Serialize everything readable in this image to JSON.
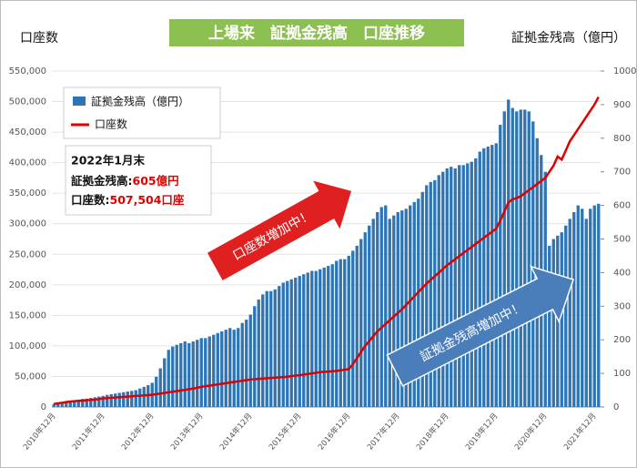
{
  "chart_data": {
    "type": "bar_line",
    "title": "上場来　証拠金残高　口座推移",
    "y_label": "口座数",
    "y2_label": "証拠金残高（億円）",
    "categories": [
      "2010年12月",
      null,
      null,
      null,
      null,
      null,
      null,
      null,
      null,
      null,
      null,
      null,
      "2011年12月",
      null,
      null,
      null,
      null,
      null,
      null,
      null,
      null,
      null,
      null,
      null,
      "2012年12月",
      null,
      null,
      null,
      null,
      null,
      null,
      null,
      null,
      null,
      null,
      null,
      "2013年12月",
      null,
      null,
      null,
      null,
      null,
      null,
      null,
      null,
      null,
      null,
      null,
      "2014年12月",
      null,
      null,
      null,
      null,
      null,
      null,
      null,
      null,
      null,
      null,
      null,
      "2015年12月",
      null,
      null,
      null,
      null,
      null,
      null,
      null,
      null,
      null,
      null,
      null,
      "2016年12月",
      null,
      null,
      null,
      null,
      null,
      null,
      null,
      null,
      null,
      null,
      null,
      "2017年12月",
      null,
      null,
      null,
      null,
      null,
      null,
      null,
      null,
      null,
      null,
      null,
      "2018年12月",
      null,
      null,
      null,
      null,
      null,
      null,
      null,
      null,
      null,
      null,
      null,
      "2019年12月",
      null,
      null,
      null,
      null,
      null,
      null,
      null,
      null,
      null,
      null,
      null,
      "2020年12月",
      null,
      null,
      null,
      null,
      null,
      null,
      null,
      null,
      null,
      null,
      null,
      "2021年12月",
      null
    ],
    "series": [
      {
        "name": "証拠金残高（億円）",
        "color": "#2e75b6",
        "axis": "y2",
        "kind": "bar",
        "values": [
          9,
          12,
          15,
          17,
          19,
          20,
          22,
          24,
          25,
          27,
          29,
          31,
          33,
          36,
          38,
          40,
          42,
          44,
          46,
          48,
          50,
          55,
          60,
          65,
          72,
          90,
          115,
          145,
          170,
          180,
          185,
          190,
          195,
          190,
          195,
          200,
          205,
          205,
          210,
          215,
          220,
          225,
          230,
          235,
          230,
          235,
          250,
          260,
          275,
          300,
          320,
          335,
          345,
          345,
          350,
          360,
          370,
          375,
          380,
          385,
          390,
          395,
          400,
          405,
          405,
          410,
          415,
          420,
          425,
          435,
          440,
          440,
          450,
          465,
          480,
          500,
          520,
          540,
          560,
          580,
          595,
          600,
          560,
          570,
          580,
          585,
          590,
          600,
          610,
          620,
          640,
          660,
          670,
          675,
          690,
          700,
          710,
          715,
          710,
          720,
          720,
          725,
          730,
          740,
          760,
          770,
          775,
          780,
          785,
          840,
          880,
          915,
          890,
          880,
          885,
          885,
          880,
          850,
          800,
          750,
          700,
          480,
          500,
          510,
          520,
          540,
          560,
          580,
          600,
          590,
          560,
          590,
          600,
          605
        ]
      },
      {
        "name": "口座数",
        "color": "#e00000",
        "axis": "y",
        "kind": "line",
        "values": [
          5000,
          6000,
          7000,
          8000,
          9000,
          9500,
          10000,
          10500,
          11000,
          11500,
          12000,
          13000,
          14000,
          14500,
          15000,
          15500,
          16000,
          16500,
          17000,
          17500,
          18000,
          18500,
          19000,
          19500,
          20000,
          21000,
          22000,
          23000,
          24000,
          25000,
          26000,
          27000,
          28000,
          29000,
          30000,
          31500,
          33000,
          34000,
          35000,
          36000,
          37000,
          38000,
          39000,
          40000,
          41000,
          42000,
          43000,
          44000,
          45000,
          45500,
          46000,
          46500,
          47000,
          47500,
          48000,
          48500,
          49000,
          49500,
          50500,
          51500,
          52000,
          53000,
          54000,
          55000,
          56000,
          57000,
          57500,
          58000,
          58500,
          59000,
          60000,
          61000,
          62000,
          70000,
          80000,
          90000,
          100000,
          108000,
          116000,
          124000,
          130000,
          136000,
          142000,
          148000,
          154000,
          160000,
          167000,
          174000,
          181000,
          188000,
          195000,
          202000,
          208000,
          214000,
          220000,
          226000,
          232000,
          237000,
          242000,
          247000,
          252000,
          257000,
          262000,
          267000,
          272000,
          277000,
          282000,
          287000,
          292000,
          305000,
          320000,
          335000,
          340000,
          342000,
          345000,
          350000,
          355000,
          360000,
          365000,
          370000,
          375000,
          385000,
          395000,
          410000,
          405000,
          420000,
          435000,
          445000,
          455000,
          465000,
          475000,
          485000,
          495000,
          507504
        ]
      }
    ],
    "ylim": [
      0,
      550000
    ],
    "yticks": [
      0,
      {
        "value": 50000,
        "label": "50,000"
      },
      {
        "value": 100000,
        "label": "100,000"
      },
      {
        "value": 150000,
        "label": "150,000"
      },
      {
        "value": 200000,
        "label": "200,000"
      },
      {
        "value": 250000,
        "label": "250,000"
      },
      {
        "value": 300000,
        "label": "300,000"
      },
      {
        "value": 350000,
        "label": "350,000"
      },
      {
        "value": 400000,
        "label": "400,000"
      },
      {
        "value": 450000,
        "label": "450,000"
      },
      {
        "value": 500000,
        "label": "500,000"
      },
      {
        "value": 550000,
        "label": "550,000"
      }
    ],
    "y2lim": [
      0,
      1000
    ],
    "y2ticks": [
      0,
      100,
      200,
      300,
      400,
      500,
      600,
      700,
      800,
      900,
      1000
    ],
    "grid": true,
    "legend": "upper left",
    "annotation": {
      "date": "2022年1月末",
      "lines": [
        {
          "label": "証拠金残高:",
          "value": "605億円"
        },
        {
          "label": "口座数:",
          "value": "507,504口座"
        }
      ]
    },
    "arrows": [
      "口座数増加中！",
      "証拠金残高増加中！"
    ]
  }
}
